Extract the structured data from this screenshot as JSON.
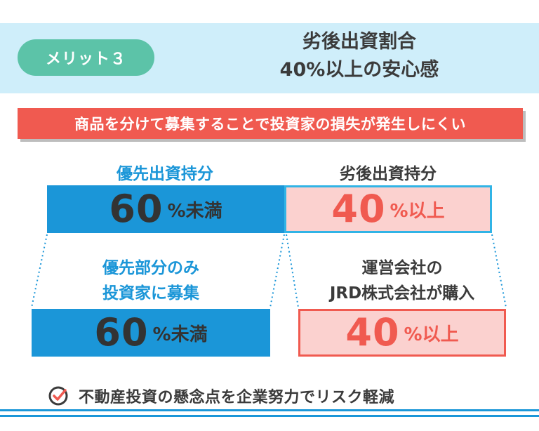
{
  "header": {
    "badge": "メリット３",
    "title_line1": "劣後出資割合",
    "title_line2": "40%以上の安心感"
  },
  "banner": "商品を分けて募集することで投資家の損失が発生しにくい",
  "senior": {
    "label": "優先出資持分",
    "top_number": "60",
    "top_unit": "%未満",
    "mid_line1": "優先部分のみ",
    "mid_line2": "投資家に募集",
    "bottom_number": "60",
    "bottom_unit": "%未満"
  },
  "junior": {
    "label": "劣後出資持分",
    "top_number": "40",
    "top_unit": "%以上",
    "mid_line1": "運営会社の",
    "mid_line2": "JRD株式会社が購入",
    "bottom_number": "40",
    "bottom_unit": "%以上"
  },
  "footer": {
    "icon": "check-circle-icon",
    "text": "不動産投資の懸念点を企業努力でリスク軽減"
  },
  "colors": {
    "accent_blue": "#1b96d8",
    "light_blue_band": "#cfeefa",
    "badge_green": "#5cc3a8",
    "red": "#f05a50",
    "pink": "#fbd1cf"
  }
}
